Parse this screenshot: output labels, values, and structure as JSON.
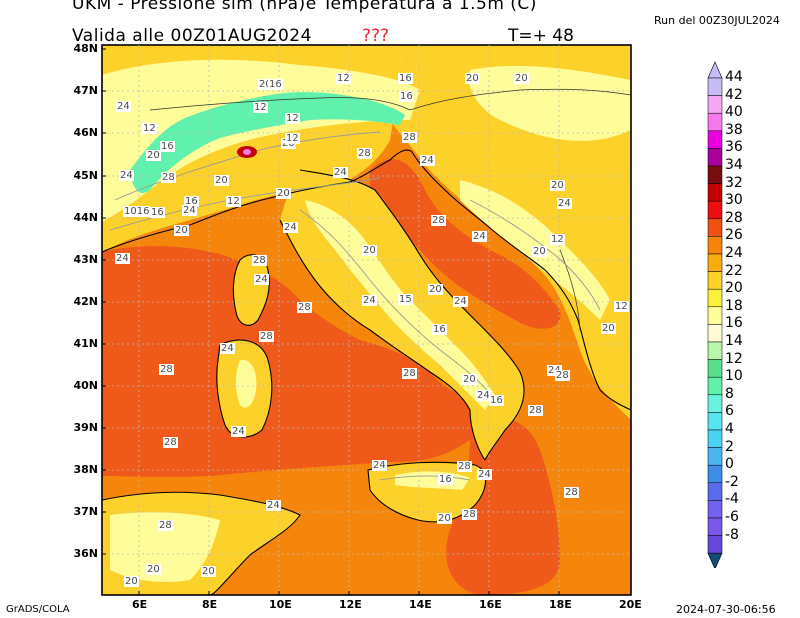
{
  "header": {
    "title": "UKM - Pressione slm (hPa)e Temperatura a 1.5m (C)",
    "validity": "Valida alle 00Z01AUG2024",
    "flag": "???",
    "forecast_step": "T=+ 48",
    "run": "Run del 00Z30JUL2024"
  },
  "footer": {
    "software": "GrADS/COLA",
    "timestamp": "2024-07-30-06:56"
  },
  "axes": {
    "latitudes": [
      "48N",
      "47N",
      "46N",
      "45N",
      "44N",
      "43N",
      "42N",
      "41N",
      "40N",
      "39N",
      "38N",
      "37N",
      "36N"
    ],
    "longitudes": [
      "6E",
      "8E",
      "10E",
      "12E",
      "14E",
      "16E",
      "18E",
      "20E"
    ]
  },
  "legend": {
    "labels": [
      "44",
      "42",
      "40",
      "38",
      "36",
      "34",
      "32",
      "30",
      "28",
      "26",
      "24",
      "22",
      "20",
      "18",
      "16",
      "14",
      "12",
      "10",
      "8",
      "6",
      "4",
      "2",
      "0",
      "-2",
      "-4",
      "-6",
      "-8"
    ],
    "colors": [
      "#c8bcf4",
      "#f6a8f4",
      "#f878ee",
      "#e800e0",
      "#a8009c",
      "#780e0e",
      "#c40000",
      "#ee1010",
      "#f05010",
      "#f5860b",
      "#f9ad0c",
      "#fcd12a",
      "#fcf13a",
      "#fffc9a",
      "#fffbd4",
      "#b8f7ac",
      "#58de8c",
      "#60f2ad",
      "#6af2e0",
      "#58e6ee",
      "#4ad2f2",
      "#4ab6f2",
      "#3e8ee8",
      "#5a6cec",
      "#7262ec",
      "#7a58e8",
      "#6848dc"
    ],
    "triangle_top_color": "#c8bcf4",
    "triangle_bottom_color": "#144a7a"
  },
  "map": {
    "region": "Italia",
    "sea_color": "#f58a0c",
    "warm_sea_color": "#ef5a1a",
    "land_color": "#fcd12a",
    "mountain_color": "#fffc9a",
    "alps_color": "#60f2ad",
    "labels": [
      {
        "text": "24"
      },
      {
        "text": "20"
      },
      {
        "text": "16"
      },
      {
        "text": "12"
      },
      {
        "text": "16"
      },
      {
        "text": "12"
      },
      {
        "text": "16"
      },
      {
        "text": "20"
      },
      {
        "text": "20"
      },
      {
        "text": "12"
      },
      {
        "text": "16"
      },
      {
        "text": "20"
      },
      {
        "text": "24"
      },
      {
        "text": "28"
      },
      {
        "text": "24"
      },
      {
        "text": "20"
      },
      {
        "text": "16"
      },
      {
        "text": "12"
      },
      {
        "text": "20"
      },
      {
        "text": "12"
      },
      {
        "text": "1016"
      },
      {
        "text": "24"
      },
      {
        "text": "20"
      },
      {
        "text": "28"
      },
      {
        "text": "24"
      },
      {
        "text": "28"
      },
      {
        "text": "24"
      },
      {
        "text": "24"
      },
      {
        "text": "28"
      },
      {
        "text": "24"
      },
      {
        "text": "16"
      },
      {
        "text": "20"
      },
      {
        "text": "12"
      },
      {
        "text": "28"
      },
      {
        "text": "24"
      },
      {
        "text": "20"
      },
      {
        "text": "24"
      },
      {
        "text": "15"
      },
      {
        "text": "20"
      },
      {
        "text": "24"
      },
      {
        "text": "28"
      },
      {
        "text": "16"
      },
      {
        "text": "24"
      },
      {
        "text": "20"
      },
      {
        "text": "28"
      },
      {
        "text": "24"
      },
      {
        "text": "28"
      },
      {
        "text": "28"
      },
      {
        "text": "12"
      },
      {
        "text": "20"
      },
      {
        "text": "20"
      },
      {
        "text": "24"
      },
      {
        "text": "24"
      },
      {
        "text": "16"
      },
      {
        "text": "28"
      },
      {
        "text": "24"
      },
      {
        "text": "28"
      },
      {
        "text": "24"
      },
      {
        "text": "16"
      },
      {
        "text": "28"
      },
      {
        "text": "24"
      },
      {
        "text": "28"
      },
      {
        "text": "20"
      },
      {
        "text": "28"
      },
      {
        "text": "28"
      },
      {
        "text": "24"
      },
      {
        "text": "20"
      },
      {
        "text": "20"
      },
      {
        "text": "20"
      },
      {
        "text": "28"
      },
      {
        "text": "20"
      },
      {
        "text": "12"
      }
    ]
  }
}
